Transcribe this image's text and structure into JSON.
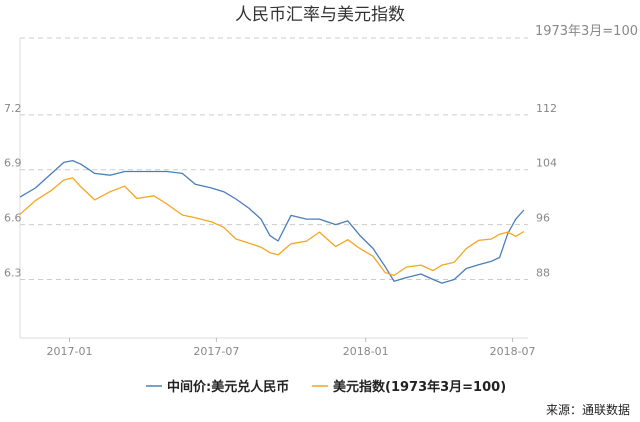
{
  "chart_data": {
    "type": "line",
    "title": "人民币汇率与美元指数",
    "right_axis_label": "1973年3月=100",
    "source": "来源：通联数据",
    "x_ticks": [
      "2017-01",
      "2017-07",
      "2018-01",
      "2018-07"
    ],
    "x_range": [
      "2016-11-01",
      "2018-07-20"
    ],
    "left_axis": {
      "ticks": [
        "7.2",
        "6.9",
        "6.6",
        "6.3"
      ],
      "ylim": [
        5.98,
        7.62
      ]
    },
    "right_axis": {
      "ticks": [
        "112",
        "104",
        "96",
        "88"
      ],
      "ylim": [
        79.47,
        123.2
      ]
    },
    "grid": true,
    "legend_position": "bottom",
    "series": [
      {
        "name": "中间价:美元兑人民币",
        "axis": "left",
        "color": "#4a7ebb",
        "points": [
          [
            "2016-11-01",
            6.75
          ],
          [
            "2016-11-20",
            6.8
          ],
          [
            "2016-12-10",
            6.88
          ],
          [
            "2016-12-25",
            6.94
          ],
          [
            "2017-01-05",
            6.95
          ],
          [
            "2017-01-15",
            6.93
          ],
          [
            "2017-02-01",
            6.88
          ],
          [
            "2017-02-20",
            6.87
          ],
          [
            "2017-03-10",
            6.89
          ],
          [
            "2017-03-25",
            6.89
          ],
          [
            "2017-04-15",
            6.89
          ],
          [
            "2017-05-01",
            6.89
          ],
          [
            "2017-05-20",
            6.88
          ],
          [
            "2017-06-05",
            6.82
          ],
          [
            "2017-06-25",
            6.8
          ],
          [
            "2017-07-10",
            6.78
          ],
          [
            "2017-07-25",
            6.74
          ],
          [
            "2017-08-10",
            6.69
          ],
          [
            "2017-08-25",
            6.63
          ],
          [
            "2017-09-05",
            6.54
          ],
          [
            "2017-09-15",
            6.51
          ],
          [
            "2017-10-01",
            6.65
          ],
          [
            "2017-10-20",
            6.63
          ],
          [
            "2017-11-05",
            6.63
          ],
          [
            "2017-11-25",
            6.6
          ],
          [
            "2017-12-10",
            6.62
          ],
          [
            "2017-12-25",
            6.54
          ],
          [
            "2018-01-10",
            6.47
          ],
          [
            "2018-01-25",
            6.37
          ],
          [
            "2018-02-05",
            6.29
          ],
          [
            "2018-02-20",
            6.31
          ],
          [
            "2018-03-10",
            6.33
          ],
          [
            "2018-03-25",
            6.3
          ],
          [
            "2018-04-05",
            6.28
          ],
          [
            "2018-04-20",
            6.3
          ],
          [
            "2018-05-05",
            6.36
          ],
          [
            "2018-05-20",
            6.38
          ],
          [
            "2018-06-05",
            6.4
          ],
          [
            "2018-06-15",
            6.42
          ],
          [
            "2018-06-25",
            6.55
          ],
          [
            "2018-07-05",
            6.63
          ],
          [
            "2018-07-15",
            6.68
          ]
        ]
      },
      {
        "name": "美元指数(1973年3月=100)",
        "axis": "right",
        "color": "#f5a623",
        "points": [
          [
            "2016-11-01",
            97.5
          ],
          [
            "2016-11-20",
            99.5
          ],
          [
            "2016-12-10",
            101.0
          ],
          [
            "2016-12-25",
            102.5
          ],
          [
            "2017-01-05",
            102.8
          ],
          [
            "2017-01-15",
            101.5
          ],
          [
            "2017-02-01",
            99.6
          ],
          [
            "2017-02-20",
            100.8
          ],
          [
            "2017-03-10",
            101.6
          ],
          [
            "2017-03-25",
            99.8
          ],
          [
            "2017-04-15",
            100.2
          ],
          [
            "2017-05-01",
            99.0
          ],
          [
            "2017-05-20",
            97.4
          ],
          [
            "2017-06-05",
            97.0
          ],
          [
            "2017-06-25",
            96.4
          ],
          [
            "2017-07-10",
            95.6
          ],
          [
            "2017-07-25",
            93.9
          ],
          [
            "2017-08-10",
            93.3
          ],
          [
            "2017-08-25",
            92.7
          ],
          [
            "2017-09-05",
            91.9
          ],
          [
            "2017-09-15",
            91.6
          ],
          [
            "2017-10-01",
            93.2
          ],
          [
            "2017-10-20",
            93.6
          ],
          [
            "2017-11-05",
            94.9
          ],
          [
            "2017-11-25",
            92.8
          ],
          [
            "2017-12-10",
            93.8
          ],
          [
            "2017-12-25",
            92.5
          ],
          [
            "2018-01-10",
            91.4
          ],
          [
            "2018-01-25",
            89.0
          ],
          [
            "2018-02-05",
            88.6
          ],
          [
            "2018-02-20",
            89.8
          ],
          [
            "2018-03-10",
            90.1
          ],
          [
            "2018-03-25",
            89.3
          ],
          [
            "2018-04-05",
            90.1
          ],
          [
            "2018-04-20",
            90.5
          ],
          [
            "2018-05-05",
            92.5
          ],
          [
            "2018-05-20",
            93.7
          ],
          [
            "2018-06-05",
            93.9
          ],
          [
            "2018-06-15",
            94.6
          ],
          [
            "2018-06-25",
            94.9
          ],
          [
            "2018-07-05",
            94.3
          ],
          [
            "2018-07-15",
            95.0
          ]
        ]
      }
    ]
  }
}
